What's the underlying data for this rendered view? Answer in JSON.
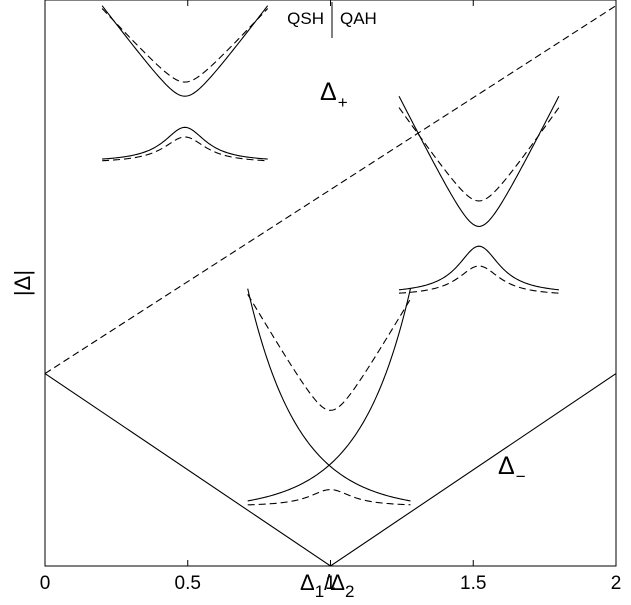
{
  "chart_data": {
    "type": "line",
    "xlabel": {
      "main": "Δ",
      "sub1": "1",
      "slash": "/Δ",
      "sub2": "2"
    },
    "ylabel": "|Δ|",
    "xlim": [
      0,
      2
    ],
    "ylim": [
      0,
      1
    ],
    "x_ticks": [
      "0",
      "0.5",
      "1",
      "1.5",
      "2"
    ],
    "x_tick_values": [
      0,
      0.5,
      1,
      1.5,
      2
    ],
    "grid": false,
    "region_labels": {
      "left": "QSH",
      "right": "QAH",
      "divider_x": 1.0
    },
    "series": [
      {
        "key": "delta_plus",
        "style": "dashed",
        "x": [
          0,
          2
        ],
        "y": [
          0.34,
          0.99
        ]
      },
      {
        "key": "delta_minus",
        "style": "solid",
        "x": [
          0,
          1,
          2
        ],
        "y": [
          0.34,
          0.0,
          0.34
        ]
      }
    ],
    "curve_labels": [
      {
        "main": "Δ",
        "sub": "+",
        "x": 0.99,
        "y": 0.84
      },
      {
        "main": "Δ",
        "sub": "−",
        "x": 1.59,
        "y": 0.145
      }
    ],
    "insets": [
      {
        "center_x": 0.49,
        "x_range": [
          0.2,
          0.78
        ],
        "solid_upper": {
          "vertex_y": 0.83,
          "edge_y": 0.99
        },
        "dashed_upper": {
          "vertex_y": 0.855,
          "edge_y": 0.985
        },
        "solid_lower": {
          "peak_y": 0.775,
          "edge_y": 0.719
        },
        "dashed_lower": {
          "peak_y": 0.758,
          "edge_y": 0.716
        }
      },
      {
        "center_x": 1.52,
        "x_range": [
          1.24,
          1.8
        ],
        "solid_upper": {
          "vertex_y": 0.6,
          "edge_y": 0.83
        },
        "dashed_upper": {
          "vertex_y": 0.645,
          "edge_y": 0.81
        },
        "solid_lower": {
          "peak_y": 0.565,
          "edge_y": 0.488
        },
        "dashed_lower": {
          "peak_y": 0.53,
          "edge_y": 0.482
        }
      },
      {
        "center_x": 1.0,
        "x_range": [
          0.71,
          1.28
        ],
        "crossing_solid": {
          "cross_y": 0.21,
          "edge_y": 0.49,
          "end_y": 0.115
        },
        "dashed_upper": {
          "vertex_y": 0.275,
          "edge_y": 0.48
        },
        "dashed_lower": {
          "peak_y": 0.135,
          "edge_y": 0.108
        }
      }
    ]
  }
}
